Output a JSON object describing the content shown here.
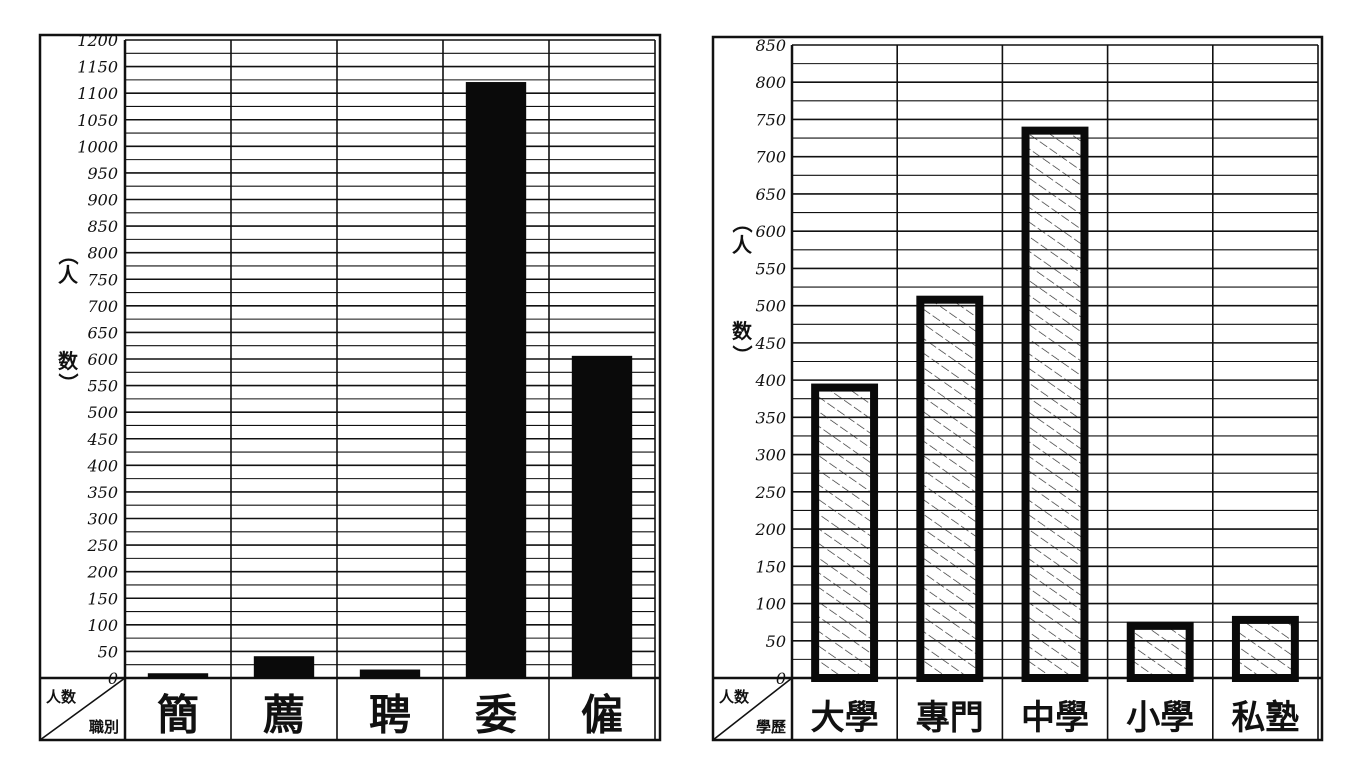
{
  "chart_data": [
    {
      "type": "bar",
      "ylabel": "（人数）",
      "corner_label_top": "人数",
      "corner_label_bottom": "職別",
      "categories": [
        "簡",
        "薦",
        "聘",
        "委",
        "僱"
      ],
      "values": [
        8,
        40,
        15,
        1120,
        605
      ],
      "ylim": [
        0,
        1200
      ],
      "y_ticks": [
        0,
        50,
        100,
        150,
        200,
        250,
        300,
        350,
        400,
        450,
        500,
        550,
        600,
        650,
        700,
        750,
        800,
        850,
        900,
        950,
        1000,
        1050,
        1100,
        1150,
        1200
      ],
      "grid": true,
      "bar_color": "#0a0a0a",
      "bar_style": "solid"
    },
    {
      "type": "bar",
      "ylabel": "（人数）",
      "corner_label_top": "人数",
      "corner_label_bottom": "學歷",
      "categories": [
        "大學",
        "專門",
        "中學",
        "小學",
        "私塾"
      ],
      "values": [
        390,
        508,
        735,
        70,
        78
      ],
      "ylim": [
        0,
        850
      ],
      "y_ticks": [
        0,
        50,
        100,
        150,
        200,
        250,
        300,
        350,
        400,
        450,
        500,
        550,
        600,
        650,
        700,
        750,
        800,
        850
      ],
      "grid": true,
      "bar_color": "#0a0a0a",
      "bar_style": "hatched"
    }
  ]
}
